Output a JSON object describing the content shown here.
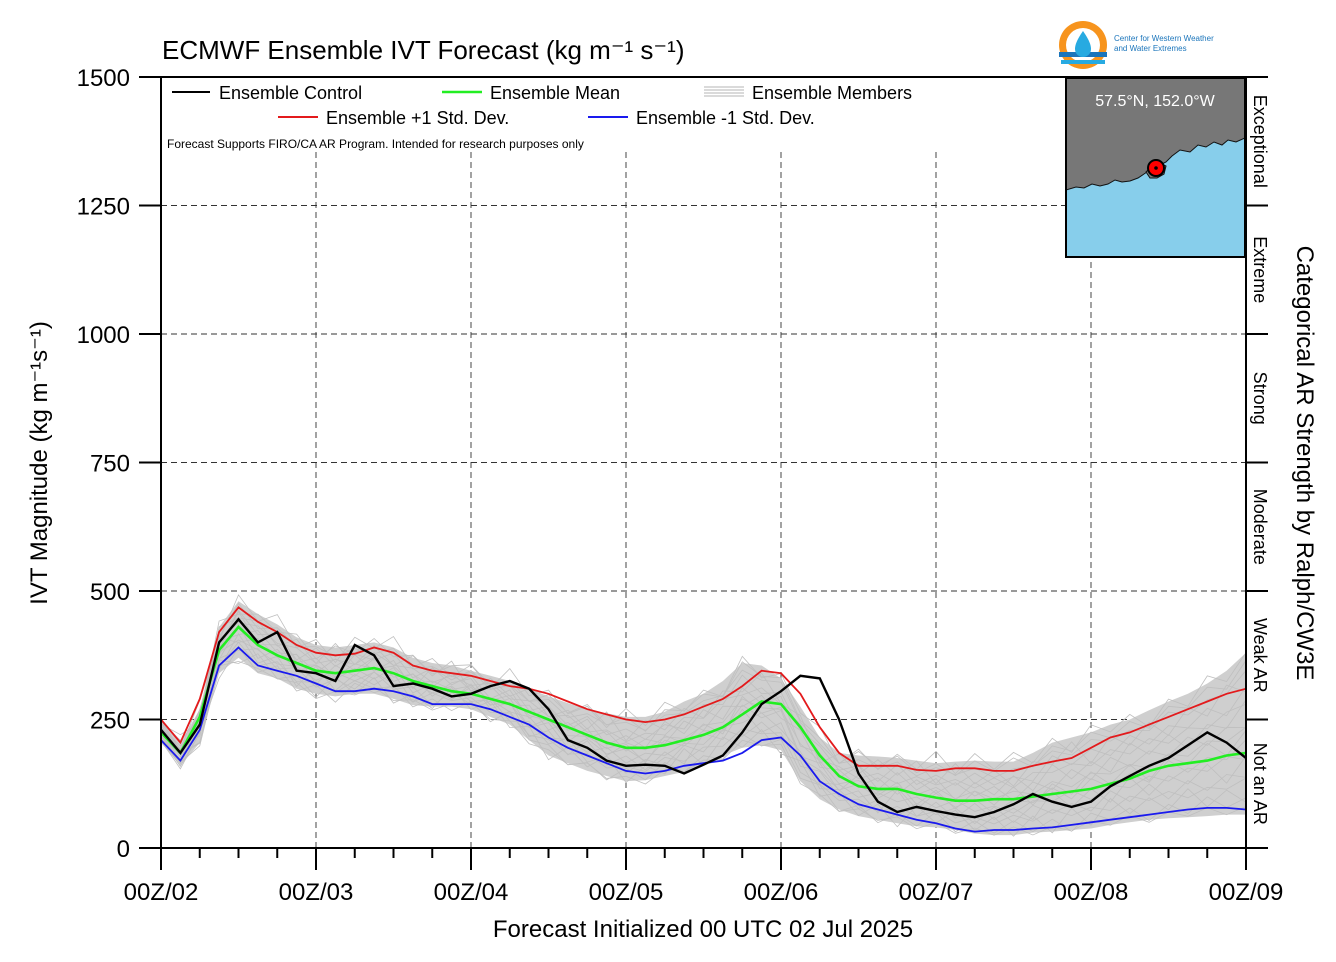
{
  "chart_data": {
    "type": "line",
    "title": "ECMWF Ensemble IVT Forecast (kg m⁻¹ s⁻¹)",
    "xlabel": "Forecast Initialized 00 UTC 02 Jul 2025",
    "ylabel": "IVT Magnitude (kg m⁻¹s⁻¹)",
    "right_label": "Categorical AR Strength by Ralph/CW3E",
    "disclaimer": "Forecast Supports FIRO/CA AR Program. Intended for research purposes only",
    "x_unit": "forecast hour",
    "xlim": [
      0,
      168
    ],
    "ylim": [
      0,
      1500
    ],
    "grid": true,
    "x_ticks": [
      {
        "value": 0,
        "label": "00Z/02"
      },
      {
        "value": 24,
        "label": "00Z/03"
      },
      {
        "value": 48,
        "label": "00Z/04"
      },
      {
        "value": 72,
        "label": "00Z/05"
      },
      {
        "value": 96,
        "label": "00Z/06"
      },
      {
        "value": 120,
        "label": "00Z/07"
      },
      {
        "value": 144,
        "label": "00Z/08"
      },
      {
        "value": 168,
        "label": "00Z/09"
      }
    ],
    "y_ticks": [
      0,
      250,
      500,
      750,
      1000,
      1250,
      1500
    ],
    "categories": [
      {
        "label": "Not an AR",
        "from": 0,
        "to": 250
      },
      {
        "label": "Weak AR",
        "from": 250,
        "to": 500
      },
      {
        "label": "Moderate",
        "from": 500,
        "to": 750
      },
      {
        "label": "Strong",
        "from": 750,
        "to": 1000
      },
      {
        "label": "Extreme",
        "from": 1000,
        "to": 1250
      },
      {
        "label": "Exceptional",
        "from": 1250,
        "to": 1500
      }
    ],
    "legend": {
      "control": "Ensemble Control",
      "mean": "Ensemble Mean",
      "members": "Ensemble Members",
      "plus_std": "Ensemble +1 Std. Dev.",
      "minus_std": "Ensemble -1 Std. Dev."
    },
    "x": [
      0,
      3,
      6,
      9,
      12,
      15,
      18,
      21,
      24,
      27,
      30,
      33,
      36,
      39,
      42,
      45,
      48,
      51,
      54,
      57,
      60,
      63,
      66,
      69,
      72,
      75,
      78,
      81,
      84,
      87,
      90,
      93,
      96,
      99,
      102,
      105,
      108,
      111,
      114,
      117,
      120,
      123,
      126,
      129,
      132,
      135,
      138,
      141,
      144,
      147,
      150,
      153,
      156,
      159,
      162,
      165,
      168
    ],
    "series": [
      {
        "key": "members_band",
        "color": "#bfbfbf",
        "upper": [
          250,
          205,
          270,
          430,
          480,
          455,
          435,
          410,
          395,
          390,
          395,
          400,
          390,
          370,
          360,
          355,
          345,
          335,
          325,
          310,
          295,
          282,
          270,
          262,
          255,
          255,
          265,
          285,
          300,
          325,
          360,
          355,
          330,
          275,
          215,
          185,
          180,
          178,
          175,
          170,
          165,
          168,
          170,
          168,
          168,
          185,
          205,
          215,
          225,
          240,
          250,
          268,
          285,
          300,
          320,
          345,
          380
        ],
        "lower": [
          205,
          160,
          205,
          340,
          370,
          340,
          330,
          310,
          300,
          295,
          300,
          300,
          290,
          278,
          275,
          275,
          270,
          255,
          240,
          210,
          180,
          165,
          150,
          140,
          130,
          132,
          140,
          148,
          160,
          180,
          195,
          200,
          190,
          130,
          95,
          75,
          62,
          55,
          48,
          42,
          40,
          35,
          28,
          25,
          25,
          30,
          32,
          35,
          38,
          45,
          50,
          55,
          58,
          60,
          62,
          65,
          65
        ]
      },
      {
        "key": "plus_std",
        "color": "#e31a1c",
        "values": [
          250,
          205,
          290,
          420,
          468,
          440,
          420,
          395,
          380,
          375,
          378,
          390,
          380,
          355,
          345,
          340,
          335,
          325,
          315,
          310,
          300,
          285,
          270,
          260,
          250,
          245,
          250,
          260,
          275,
          290,
          315,
          345,
          340,
          300,
          235,
          185,
          160,
          160,
          160,
          152,
          150,
          155,
          155,
          150,
          150,
          160,
          168,
          175,
          195,
          215,
          225,
          240,
          255,
          270,
          285,
          300,
          310
        ]
      },
      {
        "key": "mean",
        "color": "#22ee22",
        "values": [
          225,
          185,
          255,
          385,
          430,
          395,
          375,
          360,
          345,
          340,
          345,
          350,
          340,
          325,
          315,
          305,
          300,
          290,
          280,
          265,
          250,
          235,
          220,
          205,
          195,
          195,
          200,
          210,
          220,
          235,
          260,
          285,
          280,
          235,
          180,
          140,
          120,
          115,
          115,
          105,
          98,
          92,
          92,
          95,
          95,
          100,
          105,
          110,
          115,
          125,
          135,
          150,
          160,
          165,
          170,
          180,
          185
        ]
      },
      {
        "key": "minus_std",
        "color": "#1a1aee",
        "values": [
          210,
          170,
          230,
          355,
          390,
          355,
          345,
          335,
          320,
          305,
          305,
          310,
          305,
          295,
          280,
          280,
          280,
          270,
          255,
          240,
          215,
          195,
          180,
          165,
          150,
          145,
          150,
          160,
          165,
          170,
          185,
          210,
          215,
          180,
          130,
          105,
          85,
          75,
          65,
          55,
          48,
          38,
          32,
          35,
          35,
          38,
          40,
          45,
          50,
          55,
          60,
          65,
          70,
          75,
          78,
          78,
          75
        ]
      },
      {
        "key": "control",
        "color": "#000000",
        "values": [
          230,
          185,
          240,
          400,
          445,
          400,
          420,
          345,
          340,
          325,
          395,
          375,
          315,
          320,
          310,
          295,
          300,
          315,
          325,
          310,
          270,
          210,
          195,
          170,
          160,
          162,
          160,
          145,
          162,
          180,
          225,
          280,
          305,
          335,
          330,
          250,
          145,
          90,
          70,
          80,
          72,
          65,
          60,
          70,
          85,
          105,
          90,
          80,
          90,
          120,
          140,
          160,
          175,
          200,
          225,
          205,
          175
        ]
      }
    ],
    "member_offsets": [
      [
        0,
        5,
        -8,
        12,
        -10,
        6,
        -4,
        9,
        -12,
        7,
        -5,
        10,
        -6,
        8,
        -9,
        4,
        11,
        -7,
        5,
        -10,
        8,
        -6,
        12,
        -8,
        6,
        -11,
        9,
        -4,
        7,
        -12,
        10,
        -5,
        8,
        -9,
        6,
        -7,
        11,
        -5,
        9,
        -8,
        6,
        -10,
        7,
        -4,
        12,
        -9,
        5,
        -7,
        10,
        -6,
        8,
        -11,
        6,
        -5,
        9,
        -8,
        7
      ],
      [
        0,
        -6,
        9,
        -11,
        7,
        -5,
        10,
        -8,
        6,
        -12,
        8,
        -4,
        11,
        -7,
        5,
        -9,
        6,
        -10,
        12,
        -5,
        7,
        -8,
        4,
        -11,
        9,
        -6,
        10,
        -7,
        5,
        -12,
        8,
        -9,
        6,
        -4,
        11,
        -8,
        7,
        -10,
        5,
        -6,
        12,
        -9,
        8,
        -5,
        10,
        -7,
        6,
        -11,
        9,
        -4,
        7,
        -12,
        5,
        -8,
        10,
        -6,
        4
      ],
      [
        0,
        8,
        -4,
        6,
        -12,
        10,
        -7,
        5,
        -9,
        11,
        -6,
        8,
        -10,
        4,
        -7,
        12,
        -5,
        9,
        -8,
        6,
        -11,
        7,
        -4,
        10,
        -9,
        5,
        -6,
        12,
        -8,
        7,
        -10,
        4,
        -12,
        9,
        -5,
        8,
        -7,
        6,
        -11,
        10,
        -4,
        9,
        -6,
        7,
        -10,
        5,
        -12,
        8,
        -9,
        11,
        -5,
        6,
        -7,
        10,
        -8,
        4,
        -9
      ],
      [
        0,
        -10,
        7,
        -5,
        9,
        -8,
        12,
        -6,
        4,
        -11,
        7,
        -9,
        5,
        -12,
        10,
        -4,
        8,
        -7,
        6,
        -10,
        9,
        -5,
        11,
        -8,
        4,
        -7,
        12,
        -6,
        9,
        -10,
        5,
        -8,
        7,
        -11,
        6,
        -4,
        10,
        -9,
        8,
        -5,
        7,
        -12,
        4,
        -6,
        11,
        -8,
        9,
        -7,
        5,
        -10,
        12,
        -4,
        8,
        -9,
        6,
        -5,
        10
      ],
      [
        0,
        7,
        -11,
        4,
        -8,
        12,
        -5,
        10,
        -7,
        6,
        -9,
        11,
        -4,
        8,
        -12,
        5,
        -6,
        10,
        -9,
        7,
        -4,
        12,
        -8,
        5,
        -10,
        6,
        -7,
        11,
        -5,
        9,
        -12,
        4,
        -8,
        10,
        -6,
        7,
        -9,
        5,
        -11,
        8,
        -4,
        6,
        -10,
        12,
        -7,
        9,
        -5,
        4,
        -8,
        11,
        -6,
        10,
        -12,
        7,
        -9,
        5,
        -4
      ],
      [
        0,
        -4,
        10,
        -9,
        6,
        -7,
        5,
        -12,
        11,
        -8,
        4,
        -6,
        9,
        -10,
        7,
        -5,
        12,
        -4,
        8,
        -11,
        6,
        -9,
        10,
        -7,
        5,
        -8,
        4,
        -12,
        9,
        -6,
        11,
        -10,
        5,
        -7,
        8,
        -4,
        6,
        -11,
        12,
        -9,
        5,
        -8,
        7,
        -6,
        4,
        -10,
        11,
        -5,
        9,
        -7,
        12,
        -8,
        6,
        -4,
        10,
        -11,
        8
      ],
      [
        0,
        11,
        -6,
        8,
        -5,
        4,
        -10,
        7,
        -8,
        12,
        -9,
        6,
        -7,
        10,
        -4,
        11,
        -12,
        5,
        -6,
        9,
        -8,
        4,
        -7,
        12,
        -10,
        8,
        -5,
        6,
        -9,
        4,
        -11,
        7,
        -10,
        5,
        -12,
        9,
        -6,
        8,
        -4,
        11,
        -7,
        10,
        -8,
        5,
        -9,
        6,
        -4,
        12,
        -11,
        7,
        -5,
        8,
        -10,
        9,
        -6,
        12,
        -7
      ],
      [
        0,
        -9,
        4,
        -7,
        11,
        -12,
        8,
        -5,
        10,
        -4,
        6,
        -8,
        12,
        -9,
        5,
        -10,
        7,
        -6,
        4,
        -11,
        10,
        -12,
        8,
        -5,
        7,
        -9,
        11,
        -4,
        6,
        -8,
        9,
        -7,
        12,
        -10,
        4,
        -5,
        8,
        -6,
        10,
        -12,
        9,
        -7,
        5,
        -11,
        6,
        -4,
        8,
        -9,
        12,
        -5,
        7,
        -10,
        11,
        -8,
        4,
        -6,
        9
      ]
    ],
    "inset_map": {
      "label": "57.5°N, 152.0°W",
      "land_color": "#777777",
      "ocean_color": "#87ceeb",
      "marker_color": "#ff0000"
    },
    "logo": {
      "text": [
        "Center for Western Weather",
        "and Water Extremes"
      ],
      "colors": [
        "#f7941d",
        "#1b75bb",
        "#27aae1"
      ]
    }
  }
}
